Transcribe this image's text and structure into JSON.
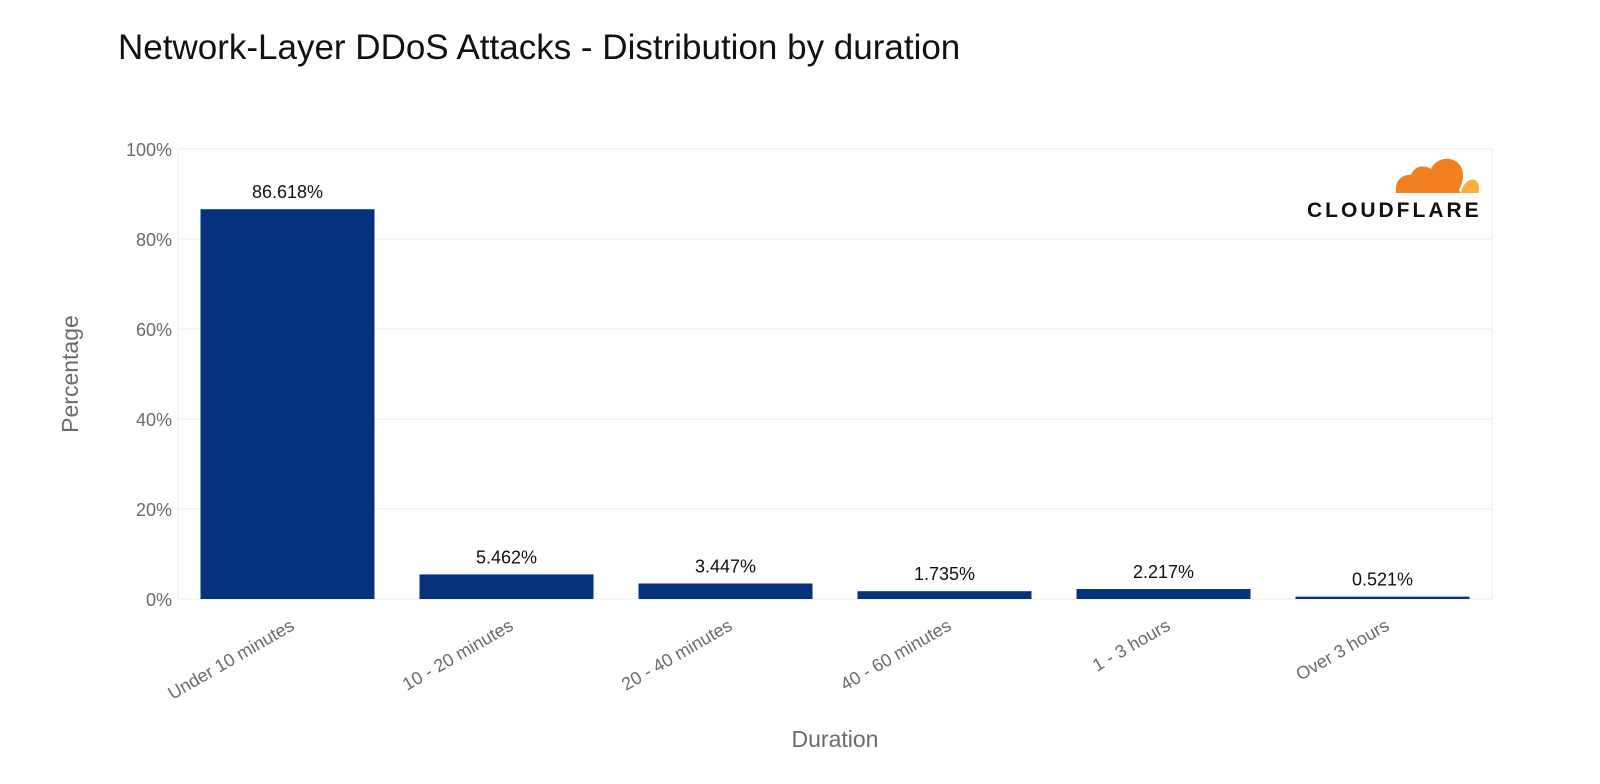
{
  "chart_data": {
    "type": "bar",
    "title": "Network-Layer DDoS Attacks - Distribution by duration",
    "xlabel": "Duration",
    "ylabel": "Percentage",
    "categories": [
      "Under 10 minutes",
      "10 - 20 minutes",
      "20 - 40 minutes",
      "40 - 60 minutes",
      "1 - 3 hours",
      "Over 3 hours"
    ],
    "values": [
      86.618,
      5.462,
      3.447,
      1.735,
      2.217,
      0.521
    ],
    "data_labels": [
      "86.618%",
      "5.462%",
      "3.447%",
      "1.735%",
      "2.217%",
      "0.521%"
    ],
    "ylim": [
      0,
      100
    ],
    "yticks": [
      0,
      20,
      40,
      60,
      80,
      100
    ],
    "ytick_labels": [
      "0%",
      "20%",
      "40%",
      "60%",
      "80%",
      "100%"
    ],
    "grid": true,
    "legend": "none",
    "bar_color": "#04327d",
    "logo": {
      "text": "CLOUDFLARE",
      "colors": [
        "#f38020",
        "#faae40"
      ],
      "placement": "top-right"
    }
  }
}
